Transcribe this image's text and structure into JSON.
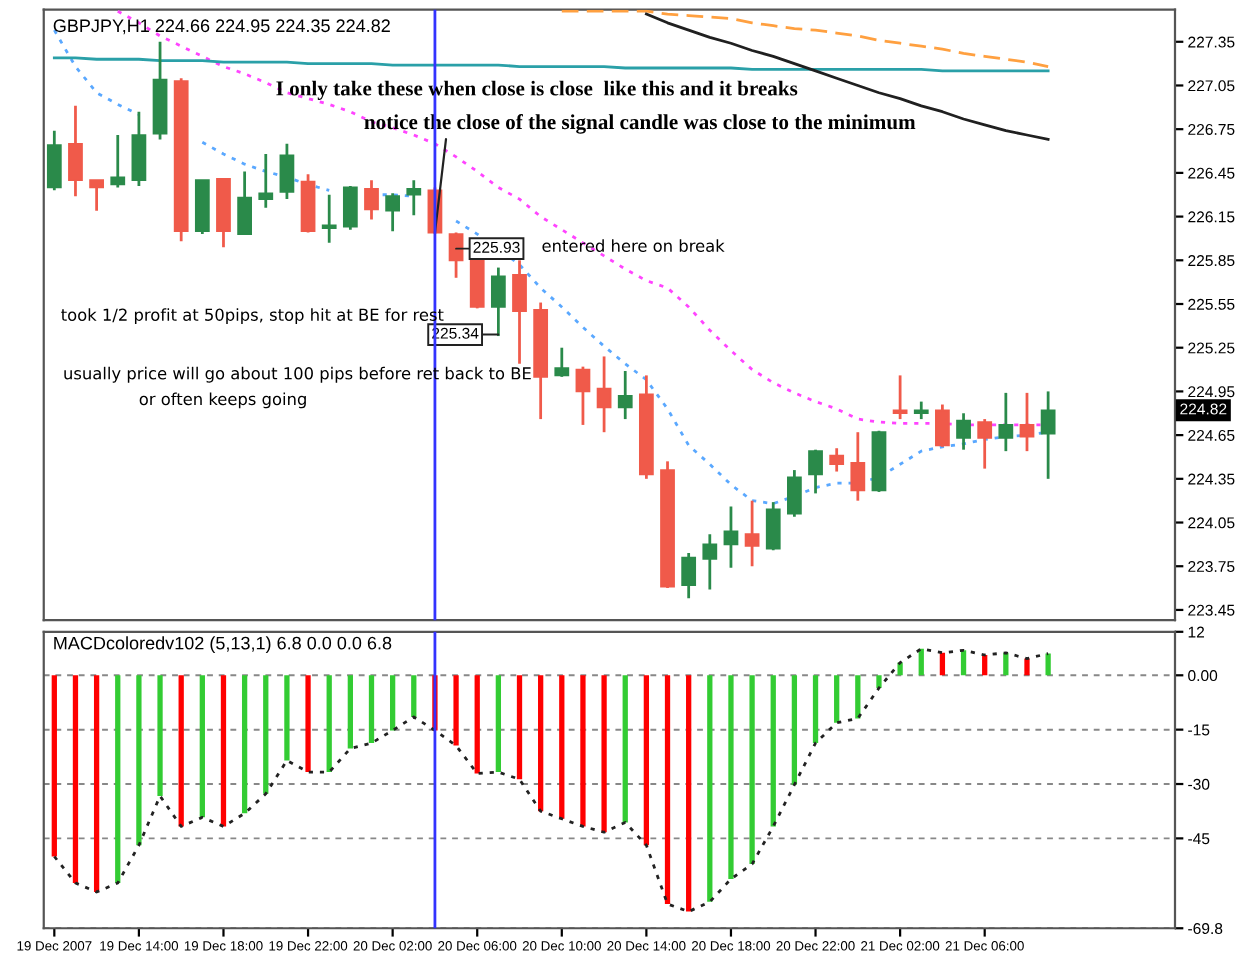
{
  "chart_data": [
    {
      "type": "candlestick",
      "title": "GBPJPY,H1 224.66 224.95 224.35 224.82",
      "x": [
        "2007-12-19T10:00",
        "2007-12-19T11:00",
        "2007-12-19T12:00",
        "2007-12-19T13:00",
        "2007-12-19T14:00",
        "2007-12-19T15:00",
        "2007-12-19T16:00",
        "2007-12-19T17:00",
        "2007-12-19T18:00",
        "2007-12-19T19:00",
        "2007-12-19T20:00",
        "2007-12-19T21:00",
        "2007-12-19T22:00",
        "2007-12-19T23:00",
        "2007-12-20T00:00",
        "2007-12-20T01:00",
        "2007-12-20T02:00",
        "2007-12-20T03:00",
        "2007-12-20T04:00",
        "2007-12-20T05:00",
        "2007-12-20T06:00",
        "2007-12-20T07:00",
        "2007-12-20T08:00",
        "2007-12-20T09:00",
        "2007-12-20T10:00",
        "2007-12-20T11:00",
        "2007-12-20T12:00",
        "2007-12-20T13:00",
        "2007-12-20T14:00",
        "2007-12-20T15:00",
        "2007-12-20T16:00",
        "2007-12-20T17:00",
        "2007-12-20T18:00",
        "2007-12-20T19:00",
        "2007-12-20T20:00",
        "2007-12-20T21:00",
        "2007-12-20T22:00",
        "2007-12-20T23:00",
        "2007-12-21T00:00",
        "2007-12-21T01:00",
        "2007-12-21T02:00",
        "2007-12-21T03:00",
        "2007-12-21T04:00",
        "2007-12-21T05:00",
        "2007-12-21T06:00",
        "2007-12-21T07:00",
        "2007-12-21T08:00",
        "2007-12-21T09:00"
      ],
      "ohlc": [
        [
          226.35,
          226.74,
          226.33,
          226.64
        ],
        [
          226.65,
          226.91,
          226.29,
          226.4
        ],
        [
          226.4,
          226.4,
          226.19,
          226.35
        ],
        [
          226.37,
          226.71,
          226.35,
          226.42
        ],
        [
          226.4,
          226.87,
          226.36,
          226.71
        ],
        [
          226.72,
          227.35,
          226.68,
          227.09
        ],
        [
          227.08,
          227.1,
          225.98,
          226.05
        ],
        [
          226.05,
          226.4,
          226.03,
          226.4
        ],
        [
          226.41,
          226.41,
          225.94,
          226.05
        ],
        [
          226.03,
          226.46,
          226.03,
          226.28
        ],
        [
          226.27,
          226.58,
          226.21,
          226.31
        ],
        [
          226.32,
          226.65,
          226.27,
          226.57
        ],
        [
          226.39,
          226.44,
          226.04,
          226.05
        ],
        [
          226.07,
          226.3,
          225.97,
          226.09
        ],
        [
          226.08,
          226.36,
          226.06,
          226.35
        ],
        [
          226.34,
          226.4,
          226.13,
          226.2
        ],
        [
          226.19,
          226.31,
          226.05,
          226.29
        ],
        [
          226.3,
          226.4,
          226.16,
          226.34
        ],
        [
          226.33,
          226.35,
          226.03,
          226.04
        ],
        [
          226.03,
          226.04,
          225.73,
          225.85
        ],
        [
          225.93,
          225.93,
          225.52,
          225.53
        ],
        [
          225.53,
          225.8,
          225.33,
          225.74
        ],
        [
          225.75,
          225.85,
          225.14,
          225.5
        ],
        [
          225.51,
          225.56,
          224.76,
          225.05
        ],
        [
          225.06,
          225.25,
          225.05,
          225.11
        ],
        [
          225.1,
          225.12,
          224.72,
          224.95
        ],
        [
          224.97,
          225.19,
          224.67,
          224.84
        ],
        [
          224.84,
          225.09,
          224.76,
          224.92
        ],
        [
          224.93,
          225.06,
          224.35,
          224.38
        ],
        [
          224.41,
          224.47,
          223.6,
          223.61
        ],
        [
          223.62,
          223.84,
          223.53,
          223.81
        ],
        [
          223.8,
          223.97,
          223.59,
          223.9
        ],
        [
          223.9,
          224.16,
          223.74,
          223.99
        ],
        [
          223.97,
          224.2,
          223.75,
          223.89
        ],
        [
          223.87,
          224.19,
          223.86,
          224.14
        ],
        [
          224.11,
          224.41,
          224.09,
          224.36
        ],
        [
          224.38,
          224.55,
          224.25,
          224.54
        ],
        [
          224.51,
          224.56,
          224.4,
          224.45
        ],
        [
          224.46,
          224.67,
          224.2,
          224.27
        ],
        [
          224.27,
          224.68,
          224.26,
          224.67
        ],
        [
          224.82,
          225.06,
          224.76,
          224.8
        ],
        [
          224.8,
          224.88,
          224.76,
          224.82
        ],
        [
          224.82,
          224.86,
          224.57,
          224.58
        ],
        [
          224.63,
          224.8,
          224.55,
          224.75
        ],
        [
          224.74,
          224.76,
          224.42,
          224.63
        ],
        [
          224.63,
          224.94,
          224.54,
          224.72
        ],
        [
          224.72,
          224.94,
          224.54,
          224.64
        ],
        [
          224.66,
          224.95,
          224.35,
          224.82
        ]
      ],
      "colors": [
        "#2a8a4a",
        "#f05a4a",
        "#f05a4a",
        "#2a8a4a",
        "#2a8a4a",
        "#2a8a4a",
        "#f05a4a",
        "#2a8a4a",
        "#f05a4a",
        "#2a8a4a",
        "#2a8a4a",
        "#2a8a4a",
        "#f05a4a",
        "#2a8a4a",
        "#2a8a4a",
        "#f05a4a",
        "#2a8a4a",
        "#2a8a4a",
        "#f05a4a",
        "#f05a4a",
        "#f05a4a",
        "#2a8a4a",
        "#f05a4a",
        "#f05a4a",
        "#2a8a4a",
        "#f05a4a",
        "#f05a4a",
        "#2a8a4a",
        "#f05a4a",
        "#f05a4a",
        "#2a8a4a",
        "#2a8a4a",
        "#2a8a4a",
        "#f05a4a",
        "#2a8a4a",
        "#2a8a4a",
        "#2a8a4a",
        "#f05a4a",
        "#f05a4a",
        "#2a8a4a",
        "#f05a4a",
        "#2a8a4a",
        "#f05a4a",
        "#2a8a4a",
        "#f05a4a",
        "#2a8a4a",
        "#f05a4a",
        "#2a8a4a"
      ],
      "series": [
        {
          "type": "line",
          "color": "#5aa8ff",
          "line_style": "dotted",
          "values": [
            227.43,
            227.18,
            227.0,
            226.92,
            226.85,
            null,
            null,
            226.66,
            226.58,
            226.51,
            226.46,
            226.42,
            226.37,
            226.33,
            null,
            226.3,
            226.3,
            226.29,
            null,
            226.12,
            226.03,
            225.93,
            225.82,
            225.66,
            225.53,
            225.39,
            225.26,
            225.14,
            225.03,
            224.83,
            224.58,
            224.45,
            224.31,
            224.2,
            224.18,
            224.23,
            224.29,
            224.32,
            224.32,
            224.36,
            224.45,
            224.54,
            224.57,
            224.59,
            224.62,
            224.64,
            224.65,
            224.67
          ]
        },
        {
          "type": "line",
          "color": "#ff44ff",
          "line_style": "dotted",
          "values": [
            null,
            null,
            null,
            227.56,
            227.48,
            227.39,
            227.32,
            227.25,
            227.18,
            227.13,
            227.07,
            227.0,
            226.96,
            226.92,
            226.87,
            226.8,
            226.76,
            226.71,
            226.65,
            226.56,
            226.46,
            226.35,
            226.27,
            226.15,
            226.06,
            225.97,
            225.88,
            225.79,
            225.71,
            225.66,
            225.53,
            225.37,
            225.23,
            225.1,
            225.01,
            224.94,
            224.88,
            224.83,
            224.76,
            224.74,
            224.73,
            224.73,
            224.73,
            224.72,
            224.72,
            224.72,
            224.72,
            224.72
          ]
        },
        {
          "type": "line",
          "color": "#2aa0a8",
          "line_style": "solid",
          "values": [
            227.24,
            227.24,
            227.23,
            227.23,
            227.23,
            227.22,
            227.22,
            227.22,
            227.21,
            227.21,
            227.21,
            227.21,
            227.2,
            227.2,
            227.2,
            227.2,
            227.19,
            227.19,
            227.19,
            227.19,
            227.19,
            227.19,
            227.18,
            227.18,
            227.18,
            227.18,
            227.18,
            227.17,
            227.17,
            227.17,
            227.17,
            227.17,
            227.17,
            227.16,
            227.16,
            227.16,
            227.16,
            227.16,
            227.16,
            227.16,
            227.16,
            227.16,
            227.15,
            227.15,
            227.15,
            227.15,
            227.15,
            227.15
          ]
        },
        {
          "type": "line",
          "color": "#ffa040",
          "line_style": "dashed",
          "values": [
            null,
            null,
            null,
            null,
            null,
            null,
            null,
            null,
            null,
            null,
            null,
            null,
            null,
            null,
            null,
            null,
            null,
            null,
            null,
            null,
            null,
            null,
            null,
            null,
            227.56,
            227.56,
            227.56,
            227.56,
            227.56,
            227.54,
            227.53,
            227.52,
            227.51,
            227.48,
            227.46,
            227.44,
            227.43,
            227.41,
            227.39,
            227.36,
            227.34,
            227.32,
            227.3,
            227.27,
            227.25,
            227.23,
            227.21,
            227.18
          ]
        },
        {
          "type": "line",
          "color": "#202020",
          "line_style": "solid",
          "values": [
            null,
            null,
            null,
            null,
            null,
            null,
            null,
            null,
            null,
            null,
            null,
            null,
            null,
            null,
            null,
            null,
            null,
            null,
            null,
            null,
            null,
            null,
            null,
            null,
            null,
            null,
            null,
            null,
            227.54,
            227.48,
            227.43,
            227.38,
            227.34,
            227.29,
            227.25,
            227.2,
            227.15,
            227.1,
            227.05,
            227.0,
            226.96,
            226.91,
            226.87,
            226.82,
            226.78,
            226.74,
            226.71,
            226.68
          ]
        }
      ],
      "xlim": [
        "2007-12-19T09:30",
        "2007-12-21T15:00"
      ],
      "tick_labels": "y",
      "ylim": [
        223.38,
        227.57
      ],
      "yticks": [
        223.45,
        223.75,
        224.05,
        224.35,
        224.65,
        224.95,
        225.25,
        225.55,
        225.85,
        226.15,
        226.45,
        226.75,
        227.05,
        227.35
      ],
      "ref_lines": [
        {
          "axis": "x",
          "value": "2007-12-20T04:00",
          "color": "#3333ff"
        }
      ],
      "annotations": [
        "224.82",
        "I only take these when close is close  like this and it breaks",
        {
          "text": "notice the close of the signal candle was close to the minimum",
          "x": "2007-12-20T04:00",
          "y": 226.04
        },
        {
          "text": "225.93",
          "x": "2007-12-20T05:00",
          "y": 225.93
        },
        "entered here on break",
        {
          "text": "225.34",
          "x": "2007-12-20T07:00",
          "y": 225.34
        },
        "took 1/2 profit at 50pips, stop hit at BE for rest",
        "usually price will go about 100 pips before ret back to BE",
        "or often keeps going"
      ]
    },
    {
      "type": "bar",
      "title": "MACDcoloredv102 (5,13,1) 6.8 0.0 0.0 6.8",
      "x": [
        "2007-12-19T10:00",
        "2007-12-19T11:00",
        "2007-12-19T12:00",
        "2007-12-19T13:00",
        "2007-12-19T14:00",
        "2007-12-19T15:00",
        "2007-12-19T16:00",
        "2007-12-19T17:00",
        "2007-12-19T18:00",
        "2007-12-19T19:00",
        "2007-12-19T20:00",
        "2007-12-19T21:00",
        "2007-12-19T22:00",
        "2007-12-19T23:00",
        "2007-12-20T00:00",
        "2007-12-20T01:00",
        "2007-12-20T02:00",
        "2007-12-20T03:00",
        "2007-12-20T04:00",
        "2007-12-20T05:00",
        "2007-12-20T06:00",
        "2007-12-20T07:00",
        "2007-12-20T08:00",
        "2007-12-20T09:00",
        "2007-12-20T10:00",
        "2007-12-20T11:00",
        "2007-12-20T12:00",
        "2007-12-20T13:00",
        "2007-12-20T14:00",
        "2007-12-20T15:00",
        "2007-12-20T16:00",
        "2007-12-20T17:00",
        "2007-12-20T18:00",
        "2007-12-20T19:00",
        "2007-12-20T20:00",
        "2007-12-20T21:00",
        "2007-12-20T22:00",
        "2007-12-20T23:00",
        "2007-12-21T00:00",
        "2007-12-21T01:00",
        "2007-12-21T02:00",
        "2007-12-21T03:00",
        "2007-12-21T04:00",
        "2007-12-21T05:00",
        "2007-12-21T06:00",
        "2007-12-21T07:00",
        "2007-12-21T08:00",
        "2007-12-21T09:00"
      ],
      "series": [
        {
          "type": "bar",
          "colors": [
            "#ff0000",
            "#ff0000",
            "#ff0000",
            "#33cc33",
            "#33cc33",
            "#33cc33",
            "#ff0000",
            "#33cc33",
            "#ff0000",
            "#33cc33",
            "#33cc33",
            "#33cc33",
            "#ff0000",
            "#33cc33",
            "#33cc33",
            "#33cc33",
            "#33cc33",
            "#33cc33",
            "#ff0000",
            "#ff0000",
            "#ff0000",
            "#33cc33",
            "#ff0000",
            "#ff0000",
            "#ff0000",
            "#ff0000",
            "#ff0000",
            "#33cc33",
            "#ff0000",
            "#ff0000",
            "#ff0000",
            "#33cc33",
            "#33cc33",
            "#33cc33",
            "#33cc33",
            "#33cc33",
            "#33cc33",
            "#33cc33",
            "#33cc33",
            "#33cc33",
            "#33cc33",
            "#33cc33",
            "#ff0000",
            "#33cc33",
            "#ff0000",
            "#33cc33",
            "#ff0000",
            "#33cc33"
          ],
          "values": [
            -50.0,
            -57.3,
            -59.8,
            -57.3,
            -46.9,
            -33.3,
            -41.7,
            -39.2,
            -41.7,
            -38.1,
            -32.7,
            -23.5,
            -26.7,
            -26.7,
            -20.2,
            -18.7,
            -15.2,
            -11.5,
            -15.2,
            -19.4,
            -27.1,
            -26.7,
            -28.7,
            -37.5,
            -39.6,
            -41.7,
            -43.3,
            -40.6,
            -46.9,
            -63.1,
            -65.2,
            -62.5,
            -56.2,
            -52.1,
            -41.7,
            -30.2,
            -18.7,
            -13.1,
            -11.9,
            -3.5,
            3.5,
            7.3,
            6.2,
            6.9,
            5.6,
            6.2,
            4.6,
            6.0
          ]
        },
        {
          "type": "line",
          "color": "#222222",
          "line_style": "dotted",
          "values": [
            -50.0,
            -57.3,
            -59.8,
            -57.3,
            -46.9,
            -33.3,
            -41.7,
            -39.2,
            -41.7,
            -38.1,
            -32.7,
            -23.5,
            -26.7,
            -26.7,
            -20.2,
            -18.7,
            -15.2,
            -11.5,
            -15.2,
            -19.4,
            -27.1,
            -26.7,
            -28.7,
            -37.5,
            -39.6,
            -41.7,
            -43.3,
            -40.6,
            -46.9,
            -63.1,
            -65.2,
            -62.5,
            -56.2,
            -52.1,
            -41.7,
            -30.2,
            -18.7,
            -13.1,
            -11.9,
            -3.5,
            3.5,
            7.3,
            6.2,
            6.9,
            5.6,
            6.2,
            4.6,
            6.0
          ]
        }
      ],
      "xlim": [
        "2007-12-19T09:30",
        "2007-12-21T15:00"
      ],
      "xticks": [
        {
          "value": "2007-12-19T10:00",
          "label": "19 Dec 2007"
        },
        {
          "value": "2007-12-19T14:00",
          "label": "19 Dec 14:00"
        },
        {
          "value": "2007-12-19T18:00",
          "label": "19 Dec 18:00"
        },
        {
          "value": "2007-12-19T22:00",
          "label": "19 Dec 22:00"
        },
        {
          "value": "2007-12-20T02:00",
          "label": "20 Dec 02:00"
        },
        {
          "value": "2007-12-20T06:00",
          "label": "20 Dec 06:00"
        },
        {
          "value": "2007-12-20T10:00",
          "label": "20 Dec 10:00"
        },
        {
          "value": "2007-12-20T14:00",
          "label": "20 Dec 14:00"
        },
        {
          "value": "2007-12-20T18:00",
          "label": "20 Dec 18:00"
        },
        {
          "value": "2007-12-20T22:00",
          "label": "20 Dec 22:00"
        },
        {
          "value": "2007-12-21T02:00",
          "label": "21 Dec 02:00"
        },
        {
          "value": "2007-12-21T06:00",
          "label": "21 Dec 06:00"
        }
      ],
      "ylim": [
        -69.8,
        12
      ],
      "yticks": [
        -69.8,
        -45,
        -30,
        -15,
        {
          "value": 0,
          "label": "0.00"
        },
        12
      ],
      "grid": "y",
      "ref_lines": [
        {
          "axis": "x",
          "value": "2007-12-20T04:00",
          "color": "#3333ff"
        }
      ]
    }
  ]
}
